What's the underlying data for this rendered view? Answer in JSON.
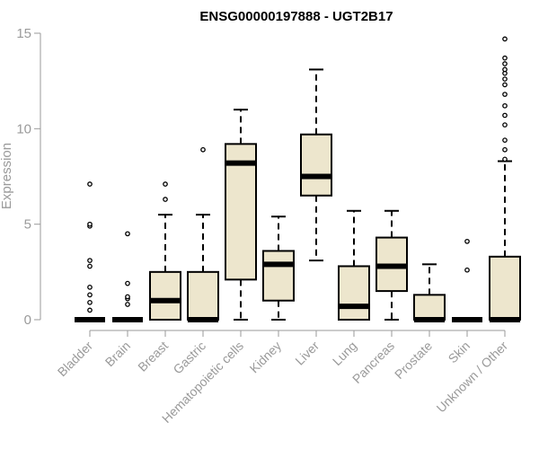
{
  "chart_data": {
    "type": "box",
    "title": "ENSG00000197888 - UGT2B17",
    "xlabel": "",
    "ylabel": "Expression",
    "ylim": [
      0,
      15
    ],
    "yticks": [
      0,
      5,
      10,
      15
    ],
    "grid": false,
    "box_fill": "#ede6cd",
    "categories": [
      "Bladder",
      "Brain",
      "Breast",
      "Gastric",
      "Hematopoietic cells",
      "Kidney",
      "Liver",
      "Lung",
      "Pancreas",
      "Prostate",
      "Skin",
      "Unknown / Other"
    ],
    "boxes": [
      {
        "whisker_low": 0,
        "q1": 0,
        "median": 0,
        "q3": 0,
        "whisker_high": 0,
        "outliers": [
          0.5,
          0.9,
          1.3,
          1.7,
          2.8,
          3.1,
          4.9,
          5.0,
          7.1
        ]
      },
      {
        "whisker_low": 0,
        "q1": 0,
        "median": 0,
        "q3": 0,
        "whisker_high": 0,
        "outliers": [
          0.8,
          1.1,
          1.2,
          1.9,
          4.5
        ]
      },
      {
        "whisker_low": 0,
        "q1": 0,
        "median": 1.0,
        "q3": 2.5,
        "whisker_high": 5.5,
        "outliers": [
          6.3,
          7.1
        ]
      },
      {
        "whisker_low": 0,
        "q1": 0,
        "median": 0,
        "q3": 2.5,
        "whisker_high": 5.5,
        "outliers": [
          8.9
        ]
      },
      {
        "whisker_low": 0,
        "q1": 2.1,
        "median": 8.2,
        "q3": 9.2,
        "whisker_high": 11.0,
        "outliers": []
      },
      {
        "whisker_low": 0,
        "q1": 1.0,
        "median": 2.9,
        "q3": 3.6,
        "whisker_high": 5.4,
        "outliers": []
      },
      {
        "whisker_low": 3.1,
        "q1": 6.5,
        "median": 7.5,
        "q3": 9.7,
        "whisker_high": 13.1,
        "outliers": []
      },
      {
        "whisker_low": 0,
        "q1": 0,
        "median": 0.7,
        "q3": 2.8,
        "whisker_high": 5.7,
        "outliers": []
      },
      {
        "whisker_low": 0,
        "q1": 1.5,
        "median": 2.8,
        "q3": 4.3,
        "whisker_high": 5.7,
        "outliers": []
      },
      {
        "whisker_low": 0,
        "q1": 0,
        "median": 0,
        "q3": 1.3,
        "whisker_high": 2.9,
        "outliers": []
      },
      {
        "whisker_low": 0,
        "q1": 0,
        "median": 0,
        "q3": 0,
        "whisker_high": 0,
        "outliers": [
          2.6,
          4.1
        ]
      },
      {
        "whisker_low": 0,
        "q1": 0,
        "median": 0,
        "q3": 3.3,
        "whisker_high": 8.3,
        "outliers": [
          8.4,
          8.9,
          9.4,
          10.2,
          10.7,
          11.2,
          11.8,
          12.3,
          12.6,
          12.9,
          13.1,
          13.4,
          13.7,
          14.7
        ]
      }
    ]
  }
}
